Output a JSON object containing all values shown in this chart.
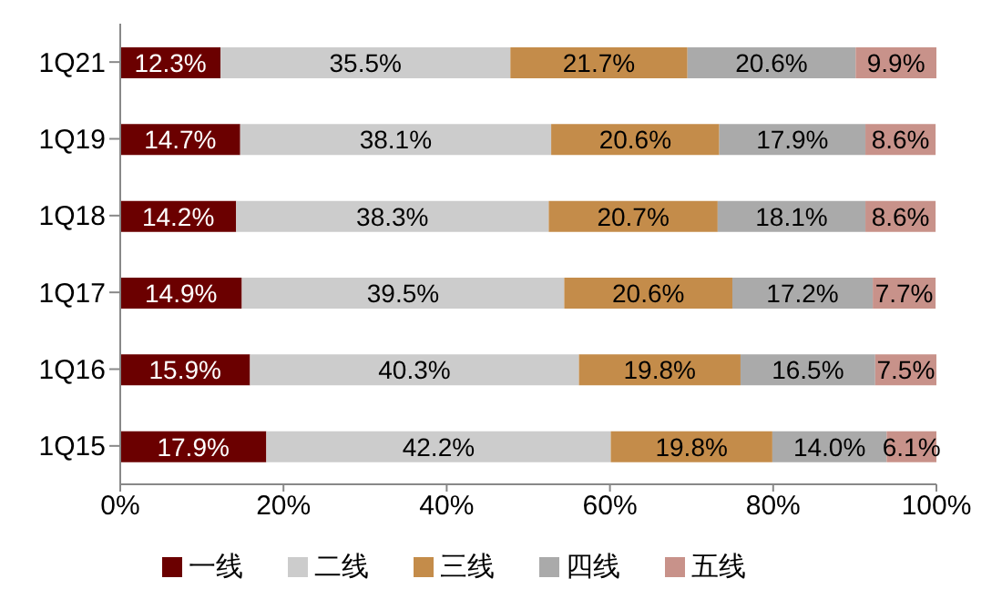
{
  "chart_data": {
    "type": "bar",
    "orientation": "horizontal",
    "stacked": true,
    "categories": [
      "1Q21",
      "1Q19",
      "1Q18",
      "1Q17",
      "1Q16",
      "1Q15"
    ],
    "series": [
      {
        "name": "一线",
        "color": "#6b0000",
        "values": [
          12.3,
          14.7,
          14.2,
          14.9,
          15.9,
          17.9
        ],
        "value_labels": [
          "12.3%",
          "14.7%",
          "14.2%",
          "14.9%",
          "15.9%",
          "17.9%"
        ]
      },
      {
        "name": "二线",
        "color": "#cccccc",
        "values": [
          35.5,
          38.1,
          38.3,
          39.5,
          40.3,
          42.2
        ],
        "value_labels": [
          "35.5%",
          "38.1%",
          "38.3%",
          "39.5%",
          "40.3%",
          "42.2%"
        ]
      },
      {
        "name": "三线",
        "color": "#c48c4a",
        "values": [
          21.7,
          20.6,
          20.7,
          20.6,
          19.8,
          19.8
        ],
        "value_labels": [
          "21.7%",
          "20.6%",
          "20.7%",
          "20.6%",
          "19.8%",
          "19.8%"
        ]
      },
      {
        "name": "四线",
        "color": "#aaaaaa",
        "values": [
          20.6,
          17.9,
          18.1,
          17.2,
          16.5,
          14.0
        ],
        "value_labels": [
          "20.6%",
          "17.9%",
          "18.1%",
          "17.2%",
          "16.5%",
          "14.0%"
        ]
      },
      {
        "name": "五线",
        "color": "#c8928a",
        "values": [
          9.9,
          8.6,
          8.6,
          7.7,
          7.5,
          6.1
        ],
        "value_labels": [
          "9.9%",
          "8.6%",
          "8.6%",
          "7.7%",
          "7.5%",
          "6.1%"
        ]
      }
    ],
    "xlim": [
      0,
      100
    ],
    "xticks": [
      {
        "value": 0,
        "label": "0%"
      },
      {
        "value": 20,
        "label": "20%"
      },
      {
        "value": 40,
        "label": "40%"
      },
      {
        "value": 60,
        "label": "60%"
      },
      {
        "value": 80,
        "label": "80%"
      },
      {
        "value": 100,
        "label": "100%"
      }
    ],
    "legend": "bottom",
    "grid": false
  }
}
